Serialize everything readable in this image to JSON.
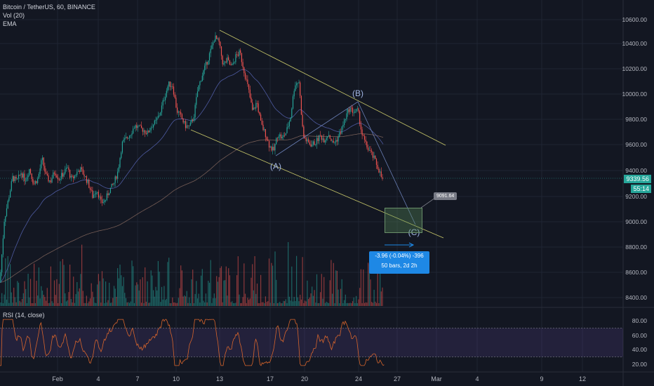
{
  "legend": {
    "symbol": "Bitcoin / TetherUS, 60, BINANCE",
    "vol": "Vol (20)",
    "ema": "EMA",
    "rsi": "RSI (14, close)"
  },
  "price_axis": {
    "labels": [
      "10600.00",
      "10400.00",
      "10200.00",
      "10000.00",
      "9800.00",
      "9600.00",
      "9400.00",
      "9200.00",
      "9000.00",
      "8800.00",
      "8600.00",
      "8400.00"
    ],
    "current_price": "9339.56",
    "countdown": "55:14"
  },
  "rsi_axis": {
    "labels": [
      "80.00",
      "60.00",
      "40.00",
      "20.00"
    ]
  },
  "time_axis": {
    "labels": [
      "Feb",
      "4",
      "7",
      "10",
      "13",
      "17",
      "20",
      "24",
      "27",
      "Mar",
      "4",
      "9",
      "12"
    ]
  },
  "annotations": {
    "wave_a": "(A)",
    "wave_b": "(B)",
    "wave_c": "(C)",
    "target_price": "9091.64",
    "measure_line1": "-3.96 (-0.04%) -396",
    "measure_line2": "50 bars, 2d 2h"
  },
  "colors": {
    "up": "#26a69a",
    "down": "#ef5350",
    "channel": "#c8c86a",
    "rsi_line": "#d8652c",
    "rsi_band": "#7e57c2",
    "measure": "#1e88e5"
  },
  "chart_data": {
    "type": "candlestick",
    "title": "Bitcoin / TetherUS, 60, BINANCE",
    "ylim": [
      8350,
      10680
    ],
    "x_range": [
      "Feb",
      "Mar 12"
    ],
    "price_path": [
      [
        0,
        8520
      ],
      [
        6,
        9010
      ],
      [
        12,
        9180
      ],
      [
        18,
        9350
      ],
      [
        24,
        9320
      ],
      [
        30,
        9390
      ],
      [
        36,
        9330
      ],
      [
        42,
        9420
      ],
      [
        48,
        9300
      ],
      [
        54,
        9340
      ],
      [
        60,
        9500
      ],
      [
        66,
        9350
      ],
      [
        72,
        9320
      ],
      [
        78,
        9400
      ],
      [
        84,
        9340
      ],
      [
        90,
        9380
      ],
      [
        96,
        9430
      ],
      [
        102,
        9330
      ],
      [
        108,
        9380
      ],
      [
        114,
        9420
      ],
      [
        120,
        9370
      ],
      [
        126,
        9300
      ],
      [
        132,
        9200
      ],
      [
        138,
        9260
      ],
      [
        144,
        9150
      ],
      [
        150,
        9170
      ],
      [
        156,
        9250
      ],
      [
        162,
        9300
      ],
      [
        168,
        9400
      ],
      [
        174,
        9620
      ],
      [
        180,
        9660
      ],
      [
        186,
        9700
      ],
      [
        192,
        9760
      ],
      [
        198,
        9740
      ],
      [
        204,
        9730
      ],
      [
        210,
        9700
      ],
      [
        216,
        9760
      ],
      [
        222,
        9790
      ],
      [
        228,
        9860
      ],
      [
        234,
        9980
      ],
      [
        240,
        10090
      ],
      [
        246,
        10080
      ],
      [
        252,
        9880
      ],
      [
        258,
        9830
      ],
      [
        264,
        9760
      ],
      [
        270,
        9750
      ],
      [
        276,
        9830
      ],
      [
        282,
        10050
      ],
      [
        288,
        10160
      ],
      [
        294,
        10250
      ],
      [
        300,
        10350
      ],
      [
        306,
        10460
      ],
      [
        312,
        10420
      ],
      [
        318,
        10240
      ],
      [
        324,
        10280
      ],
      [
        330,
        10220
      ],
      [
        336,
        10310
      ],
      [
        342,
        10340
      ],
      [
        348,
        10190
      ],
      [
        354,
        10050
      ],
      [
        360,
        9870
      ],
      [
        366,
        9950
      ],
      [
        372,
        9770
      ],
      [
        378,
        9700
      ],
      [
        384,
        9600
      ],
      [
        390,
        9560
      ],
      [
        396,
        9700
      ],
      [
        402,
        9660
      ],
      [
        408,
        9710
      ],
      [
        414,
        9830
      ],
      [
        420,
        10090
      ],
      [
        426,
        10110
      ],
      [
        432,
        9680
      ],
      [
        438,
        9630
      ],
      [
        444,
        9610
      ],
      [
        450,
        9630
      ],
      [
        456,
        9680
      ],
      [
        462,
        9650
      ],
      [
        468,
        9700
      ],
      [
        474,
        9620
      ],
      [
        480,
        9650
      ],
      [
        486,
        9720
      ],
      [
        492,
        9820
      ],
      [
        498,
        9900
      ],
      [
        504,
        9870
      ],
      [
        510,
        9880
      ],
      [
        516,
        9690
      ],
      [
        522,
        9600
      ],
      [
        528,
        9550
      ],
      [
        534,
        9490
      ],
      [
        540,
        9410
      ],
      [
        546,
        9310
      ]
    ],
    "rsi_ylim": [
      15,
      90
    ],
    "rsi_levels": [
      30,
      70
    ]
  }
}
